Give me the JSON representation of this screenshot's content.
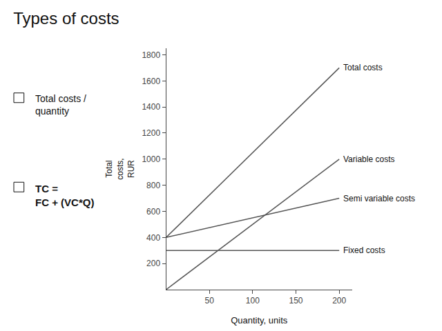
{
  "chart_data": {
    "type": "line",
    "title": "Types of costs",
    "xlabel": "Quantity, units",
    "ylabel": "Total\ncosts,\nRUR",
    "annotations": [
      "Total costs /\nquantity",
      "TC =\nFC + (VC*Q)"
    ],
    "x": [
      0,
      200
    ],
    "series": [
      {
        "name": "Fixed costs",
        "color": "#555555",
        "values": [
          300,
          300
        ]
      },
      {
        "name": "Semi variable costs",
        "color": "#555555",
        "values": [
          400,
          700
        ]
      },
      {
        "name": "Variable costs",
        "color": "#555555",
        "values": [
          0,
          1000
        ]
      },
      {
        "name": "Total costs",
        "color": "#555555",
        "values": [
          400,
          1700
        ]
      }
    ],
    "xlim": [
      0,
      215
    ],
    "xticks": [
      50,
      100,
      150,
      200
    ],
    "ylim": [
      0,
      1850
    ],
    "yticks": [
      200,
      400,
      600,
      800,
      1000,
      1200,
      1400,
      1600,
      1800
    ],
    "grid": false
  }
}
